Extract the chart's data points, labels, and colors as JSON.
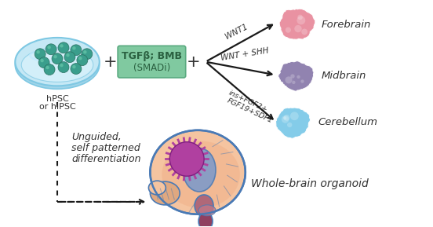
{
  "bg_color": "#ffffff",
  "dish_outer_color": "#c5e8f5",
  "dish_inner_color": "#daf2fc",
  "dish_rim_color": "#7ec8e3",
  "cell_color": "#3a9e8c",
  "cell_edge_color": "#2a7060",
  "box_color": "#80c9a0",
  "box_edge_color": "#5aaa80",
  "box_text_color": "#2a6040",
  "box_label1": "TGFβ; BMB",
  "box_label2": "(SMADi)",
  "hpsc_label1": "hPSC",
  "hpsc_label2": "or hiPSC",
  "plus_color": "#333333",
  "arrow_color": "#1a1a1a",
  "label_wnt1": "WNT1",
  "label_wnt_shh": "WNT + SHH",
  "label_fgf": "ins+FGF2+",
  "label_fgf2": "FGF19+SDF1",
  "forebrain_color": "#e8899a",
  "midbrain_color": "#8878aa",
  "cerebellum_color": "#7ac8e8",
  "forebrain_label": "Forebrain",
  "midbrain_label": "Midbrain",
  "cerebellum_label": "Cerebellum",
  "unguided_text1": "Unguided,",
  "unguided_text2": "self patterned",
  "unguided_text3": "differentiation",
  "whole_brain_label": "Whole-brain organoid",
  "brain_cortex_fill": "#f5c4a0",
  "brain_inner_fill": "#f0b088",
  "brain_outline": "#4a7ab5",
  "brainstem_fill": "#b06878",
  "cerebellum_fill": "#e0a880",
  "ventricle_fill": "#7898cc",
  "organoid_fill": "#b040a0",
  "organoid_edge": "#802080",
  "text_color": "#333333"
}
